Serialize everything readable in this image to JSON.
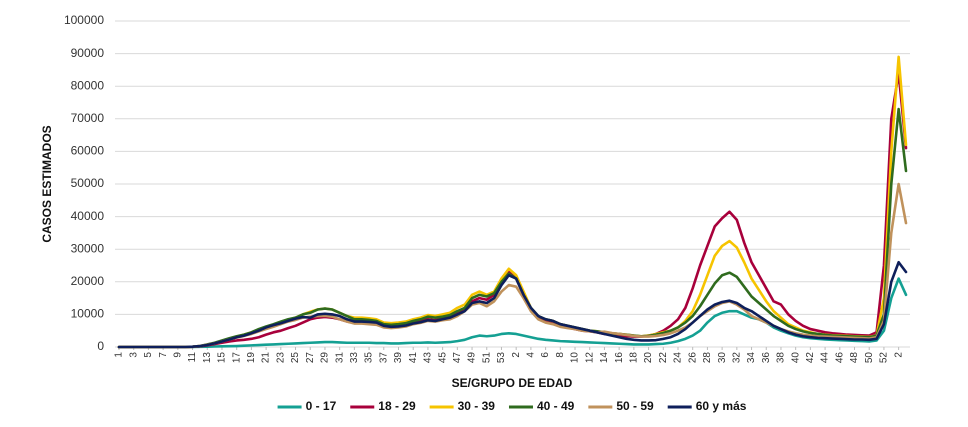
{
  "chart_data": {
    "type": "line",
    "xlabel": "SE/GRUPO DE EDAD",
    "ylabel": "CASOS ESTIMADOS",
    "categories": [
      "1",
      null,
      "3",
      null,
      "5",
      null,
      "7",
      null,
      "9",
      null,
      "11",
      null,
      "13",
      null,
      "15",
      null,
      "17",
      null,
      "19",
      null,
      "21",
      null,
      "23",
      null,
      "25",
      null,
      "27",
      null,
      "29",
      null,
      "31",
      null,
      "33",
      null,
      "35",
      null,
      "37",
      null,
      "39",
      null,
      "41",
      null,
      "43",
      null,
      "45",
      null,
      "47",
      null,
      "49",
      null,
      "51",
      null,
      "53",
      null,
      "2",
      null,
      "4",
      null,
      "6",
      null,
      "8",
      null,
      "10",
      null,
      "12",
      null,
      "14",
      null,
      "16",
      null,
      "18",
      null,
      "20",
      null,
      "22",
      null,
      "24",
      null,
      "26",
      null,
      "28",
      null,
      "30",
      null,
      "32",
      null,
      "34",
      null,
      "36",
      null,
      "38",
      null,
      "40",
      null,
      "42",
      null,
      "44",
      null,
      "46",
      null,
      "48",
      null,
      "50",
      null,
      "52",
      null,
      "2",
      null
    ],
    "ylim": [
      0,
      100000
    ],
    "yticks": [
      0,
      10000,
      20000,
      30000,
      40000,
      50000,
      60000,
      70000,
      80000,
      90000,
      100000
    ],
    "grid": true,
    "legend": "bottom",
    "series": [
      {
        "name": "0 - 17",
        "color": "#14a093",
        "values": [
          0,
          0,
          0,
          0,
          0,
          0,
          0,
          0,
          0,
          0,
          0,
          50,
          100,
          150,
          200,
          250,
          300,
          400,
          500,
          600,
          700,
          800,
          900,
          1000,
          1100,
          1200,
          1300,
          1400,
          1500,
          1500,
          1400,
          1300,
          1300,
          1300,
          1300,
          1200,
          1200,
          1100,
          1100,
          1200,
          1300,
          1300,
          1400,
          1300,
          1400,
          1500,
          1800,
          2200,
          3000,
          3500,
          3300,
          3500,
          4000,
          4200,
          4000,
          3500,
          3000,
          2500,
          2200,
          2000,
          1800,
          1700,
          1600,
          1500,
          1400,
          1300,
          1200,
          1100,
          1000,
          900,
          800,
          800,
          800,
          900,
          1000,
          1300,
          1800,
          2500,
          3500,
          5000,
          7500,
          9500,
          10500,
          11000,
          11000,
          10000,
          9000,
          8500,
          7500,
          6000,
          5000,
          4200,
          3500,
          3000,
          2700,
          2500,
          2300,
          2200,
          2100,
          2000,
          1900,
          1800,
          1700,
          2000,
          5000,
          15000,
          21000,
          16000
        ]
      },
      {
        "name": "18 - 29",
        "color": "#a8003b",
        "values": [
          0,
          0,
          0,
          0,
          0,
          0,
          0,
          0,
          0,
          0,
          50,
          200,
          500,
          900,
          1300,
          1700,
          2000,
          2200,
          2500,
          3000,
          3800,
          4500,
          5000,
          5800,
          6500,
          7500,
          8500,
          9000,
          9200,
          9000,
          8500,
          7800,
          7500,
          7500,
          7300,
          7000,
          6500,
          6200,
          6500,
          7000,
          7500,
          8000,
          8500,
          8200,
          8800,
          9000,
          10500,
          11500,
          14000,
          15000,
          14500,
          16000,
          20000,
          23000,
          21000,
          16000,
          11500,
          9000,
          8000,
          7500,
          6500,
          6000,
          5500,
          5000,
          4800,
          4500,
          4000,
          3800,
          3500,
          3300,
          3200,
          3200,
          3500,
          4000,
          5000,
          6500,
          8500,
          12000,
          18000,
          25000,
          31000,
          37000,
          39500,
          41500,
          39000,
          32000,
          26000,
          22000,
          18000,
          14000,
          13000,
          10000,
          8000,
          6500,
          5500,
          5000,
          4500,
          4200,
          4000,
          3800,
          3700,
          3600,
          3500,
          4500,
          25000,
          70000,
          84000,
          61000
        ]
      },
      {
        "name": "30 - 39",
        "color": "#f6c400",
        "values": [
          0,
          0,
          0,
          0,
          0,
          0,
          0,
          0,
          0,
          0,
          100,
          300,
          700,
          1200,
          1800,
          2500,
          3200,
          3800,
          4500,
          5300,
          6000,
          6800,
          7500,
          8300,
          9000,
          10000,
          10800,
          11500,
          11800,
          11500,
          10500,
          9500,
          9000,
          9000,
          8800,
          8500,
          7500,
          7300,
          7500,
          7800,
          8500,
          9000,
          9800,
          9500,
          10000,
          10500,
          12000,
          13000,
          16000,
          17000,
          16000,
          17000,
          21000,
          24000,
          22000,
          17000,
          12000,
          9500,
          8500,
          8000,
          7000,
          6500,
          6000,
          5500,
          5000,
          4800,
          4500,
          4200,
          4000,
          3800,
          3500,
          3300,
          3500,
          4000,
          4500,
          5000,
          6000,
          8000,
          11000,
          16000,
          22000,
          28000,
          31000,
          32500,
          30500,
          26000,
          21000,
          17500,
          14000,
          11000,
          9000,
          7000,
          6000,
          5000,
          4500,
          4000,
          3800,
          3600,
          3500,
          3400,
          3300,
          3200,
          3100,
          3500,
          15000,
          60000,
          89000,
          62000
        ]
      },
      {
        "name": "40 - 49",
        "color": "#2f6b1e",
        "values": [
          0,
          0,
          0,
          0,
          0,
          0,
          0,
          0,
          0,
          0,
          100,
          300,
          800,
          1300,
          2000,
          2700,
          3300,
          3800,
          4500,
          5500,
          6300,
          7000,
          7800,
          8500,
          9000,
          10000,
          10500,
          11500,
          11800,
          11500,
          10500,
          9500,
          8500,
          8500,
          8300,
          8000,
          7000,
          6800,
          7000,
          7300,
          8000,
          8500,
          9300,
          9000,
          9300,
          9800,
          11000,
          12000,
          15000,
          16000,
          15500,
          16500,
          20000,
          22500,
          21000,
          16000,
          12000,
          9500,
          8500,
          8000,
          7000,
          6500,
          6000,
          5500,
          5000,
          4800,
          4500,
          4200,
          4000,
          3800,
          3500,
          3300,
          3400,
          3800,
          4300,
          5000,
          6000,
          7500,
          9500,
          12500,
          16000,
          19500,
          22000,
          22800,
          21500,
          18500,
          15500,
          13500,
          11500,
          9500,
          8000,
          6500,
          5500,
          4800,
          4300,
          4000,
          3700,
          3500,
          3400,
          3300,
          3200,
          3100,
          3000,
          3500,
          10000,
          50000,
          73000,
          54000
        ]
      },
      {
        "name": "50 - 59",
        "color": "#c0925c",
        "values": [
          0,
          0,
          0,
          0,
          0,
          0,
          0,
          0,
          0,
          0,
          100,
          300,
          700,
          1100,
          1700,
          2300,
          2900,
          3400,
          4000,
          4800,
          5500,
          6200,
          7000,
          7800,
          8300,
          9000,
          9300,
          9500,
          9600,
          9300,
          8500,
          7800,
          7200,
          7200,
          7000,
          6800,
          6000,
          5800,
          6000,
          6300,
          7000,
          7400,
          8000,
          7800,
          8200,
          8500,
          9500,
          11000,
          13000,
          13500,
          12500,
          14000,
          17000,
          19000,
          18500,
          15000,
          11000,
          8500,
          7500,
          7000,
          6200,
          5800,
          5500,
          5000,
          4800,
          4500,
          4700,
          4300,
          4000,
          3700,
          3400,
          3200,
          3200,
          3400,
          3700,
          4200,
          5000,
          6000,
          7500,
          9500,
          11000,
          12500,
          13500,
          14000,
          13000,
          11500,
          9500,
          8500,
          7500,
          6500,
          5500,
          4800,
          4200,
          3800,
          3500,
          3300,
          3200,
          3100,
          3000,
          2900,
          2800,
          2700,
          2600,
          3000,
          8000,
          35000,
          50000,
          38000
        ]
      },
      {
        "name": "60 y más",
        "color": "#0e1f5b",
        "values": [
          0,
          0,
          0,
          0,
          0,
          0,
          0,
          0,
          0,
          0,
          100,
          300,
          600,
          1100,
          1700,
          2300,
          3000,
          3500,
          4200,
          5000,
          6000,
          6700,
          7300,
          8000,
          8700,
          9200,
          9000,
          10000,
          10200,
          10000,
          9500,
          8500,
          7800,
          7800,
          7700,
          7500,
          6500,
          6200,
          6300,
          6600,
          7200,
          7600,
          8200,
          8000,
          8500,
          9000,
          10000,
          11000,
          13500,
          14000,
          13500,
          15000,
          19000,
          22000,
          21000,
          16000,
          12000,
          9500,
          8500,
          8000,
          7000,
          6500,
          6000,
          5500,
          5000,
          4500,
          4000,
          3500,
          3000,
          2500,
          2200,
          2000,
          2000,
          2100,
          2500,
          3000,
          4000,
          5500,
          7500,
          9500,
          11500,
          13000,
          13800,
          14200,
          13500,
          12000,
          11000,
          9500,
          8000,
          6500,
          5500,
          4500,
          3800,
          3300,
          3000,
          2800,
          2700,
          2600,
          2500,
          2400,
          2300,
          2300,
          2200,
          2500,
          7000,
          20000,
          26000,
          23000
        ]
      }
    ]
  }
}
